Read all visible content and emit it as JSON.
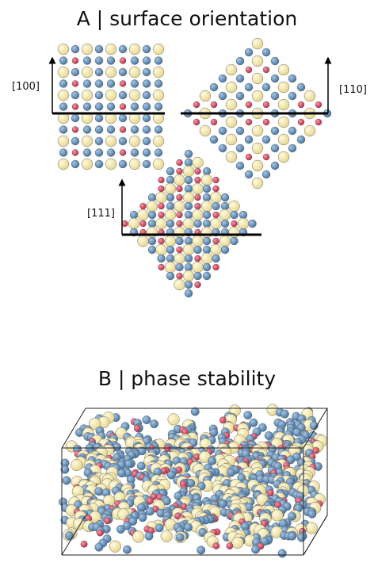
{
  "panel_a": {
    "title": "A | surface orientation",
    "labels": [
      "[100]",
      "[110]",
      "[111]"
    ]
  },
  "panel_b": {
    "title": "B | phase stability"
  }
}
